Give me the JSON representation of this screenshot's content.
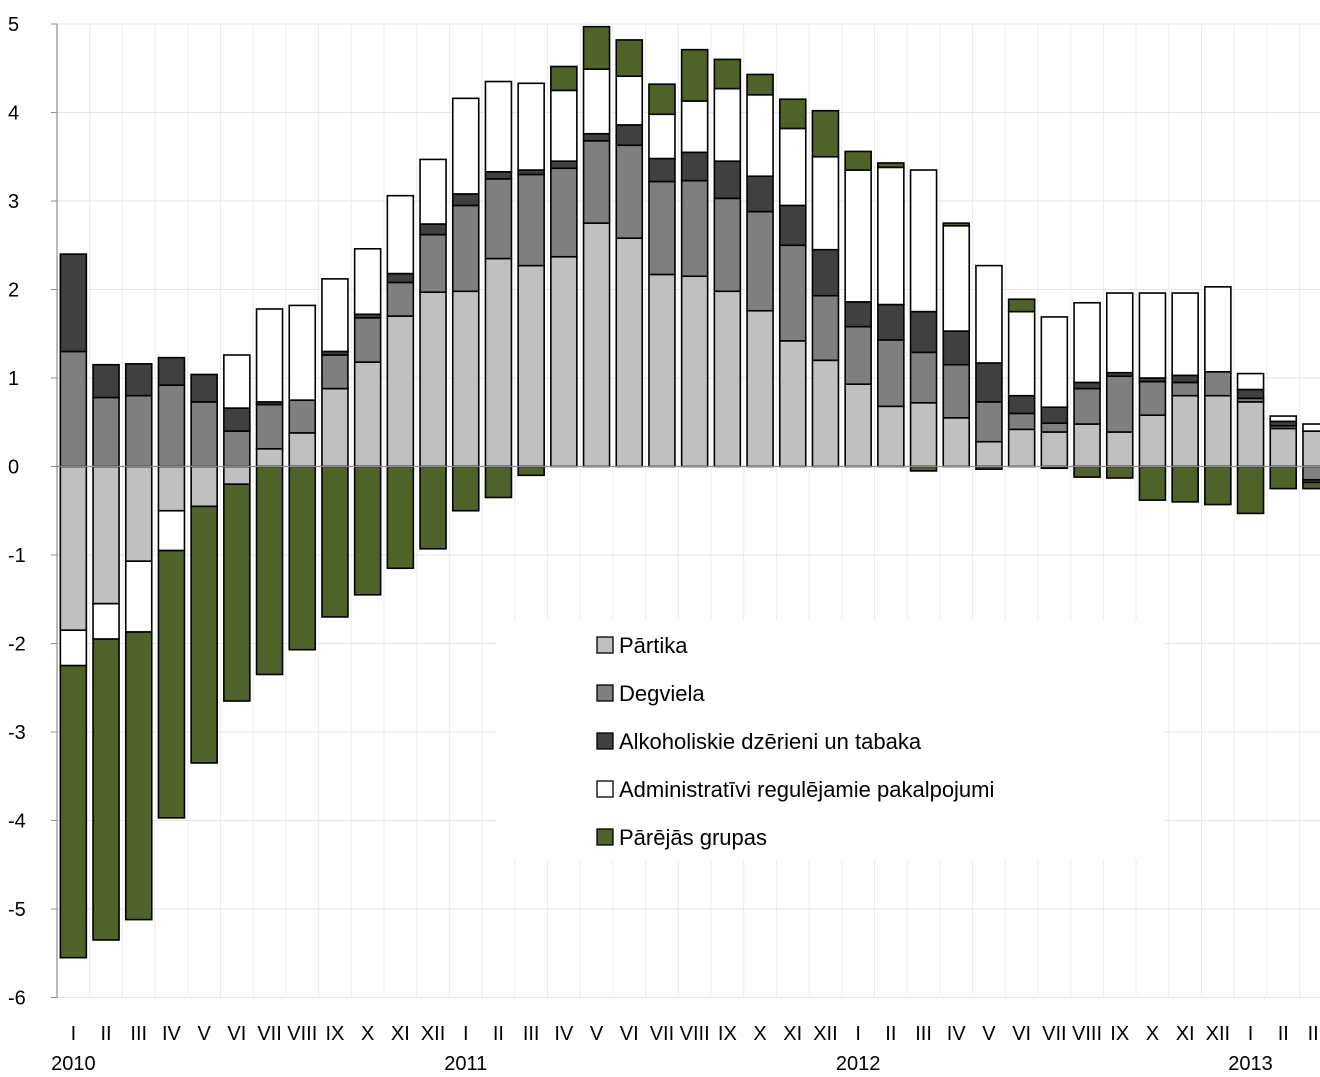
{
  "chart_data": {
    "type": "bar",
    "stacked": true,
    "ylim": [
      -6,
      5
    ],
    "yticks": [
      5,
      4,
      3,
      2,
      1,
      0,
      -1,
      -2,
      -3,
      -4,
      -5,
      -6
    ],
    "ytick_labels": [
      "5",
      "4",
      "3",
      "2",
      "1",
      "0",
      "-1",
      "-2",
      "-3",
      "-4",
      "-5",
      "-6"
    ],
    "grid": true,
    "legend_position": "center",
    "categories": [
      "I",
      "II",
      "III",
      "IV",
      "V",
      "VI",
      "VII",
      "VIII",
      "IX",
      "X",
      "XI",
      "XII",
      "I",
      "II",
      "III",
      "IV",
      "V",
      "VI",
      "VII",
      "VIII",
      "IX",
      "X",
      "XI",
      "XII",
      "I",
      "II",
      "III",
      "IV",
      "V",
      "VI",
      "VII",
      "VIII",
      "IX",
      "X",
      "XI",
      "XII",
      "I",
      "II",
      "III"
    ],
    "years": [
      {
        "label": "2010",
        "index": 0
      },
      {
        "label": "2011",
        "index": 12
      },
      {
        "label": "2012",
        "index": 24
      },
      {
        "label": "2013",
        "index": 36
      }
    ],
    "series": [
      {
        "name": "Pārtika",
        "color": "#c0c0c0",
        "values": [
          -1.85,
          -1.55,
          -1.07,
          -0.5,
          -0.45,
          -0.2,
          0.2,
          0.38,
          0.88,
          1.18,
          1.7,
          1.97,
          1.98,
          2.35,
          2.27,
          2.37,
          2.75,
          2.58,
          2.17,
          2.15,
          1.98,
          1.76,
          1.42,
          1.2,
          0.93,
          0.68,
          0.72,
          0.55,
          0.28,
          0.42,
          0.39,
          0.48,
          0.39,
          0.58,
          0.8,
          0.8,
          0.73,
          0.43,
          0.4
        ]
      },
      {
        "name": "Degviela",
        "color": "#7f7f7f",
        "values": [
          1.3,
          0.78,
          0.8,
          0.92,
          0.73,
          0.4,
          0.5,
          0.37,
          0.38,
          0.5,
          0.38,
          0.65,
          0.97,
          0.9,
          1.03,
          1.0,
          0.93,
          1.05,
          1.05,
          1.08,
          1.05,
          1.12,
          1.08,
          0.73,
          0.65,
          0.75,
          0.57,
          0.6,
          0.45,
          0.18,
          0.1,
          0.4,
          0.63,
          0.38,
          0.15,
          0.27,
          0.04,
          0.03,
          -0.15
        ]
      },
      {
        "name": "Alkoholiskie dzērieni un tabaka",
        "color": "#404040",
        "values": [
          1.1,
          0.37,
          0.36,
          0.31,
          0.31,
          0.26,
          0.03,
          0.0,
          0.04,
          0.04,
          0.1,
          0.12,
          0.13,
          0.08,
          0.05,
          0.08,
          0.08,
          0.23,
          0.26,
          0.32,
          0.42,
          0.4,
          0.45,
          0.52,
          0.28,
          0.4,
          0.46,
          0.38,
          0.44,
          0.2,
          0.18,
          0.07,
          0.04,
          0.04,
          0.08,
          0.0,
          0.1,
          0.05,
          -0.03
        ]
      },
      {
        "name": "Administratīvi regulējamie pakalpojumi",
        "color": "#ffffff",
        "values": [
          -0.4,
          -0.4,
          -0.8,
          -0.45,
          0.0,
          0.6,
          1.05,
          1.07,
          0.82,
          0.74,
          0.88,
          0.73,
          1.08,
          1.02,
          0.98,
          0.8,
          0.73,
          0.55,
          0.5,
          0.58,
          0.82,
          0.92,
          0.87,
          1.05,
          1.49,
          1.55,
          1.6,
          1.19,
          1.1,
          0.95,
          1.02,
          0.9,
          0.9,
          0.96,
          0.93,
          0.96,
          0.18,
          0.06,
          0.08
        ]
      },
      {
        "name": "Pārējās grupas",
        "color": "#4f6228",
        "values": [
          -3.3,
          -3.4,
          -3.25,
          -3.02,
          -2.9,
          -2.45,
          -2.35,
          -2.07,
          -1.7,
          -1.45,
          -1.15,
          -0.93,
          -0.5,
          -0.35,
          -0.1,
          0.27,
          0.48,
          0.41,
          0.34,
          0.58,
          0.33,
          0.23,
          0.33,
          0.52,
          0.21,
          0.05,
          -0.05,
          0.03,
          -0.03,
          0.14,
          -0.02,
          -0.12,
          -0.13,
          -0.38,
          -0.4,
          -0.43,
          -0.53,
          -0.25,
          -0.07
        ]
      }
    ]
  },
  "legend": {
    "items": [
      {
        "label": "Pārtika",
        "color": "#c0c0c0"
      },
      {
        "label": "Degviela",
        "color": "#7f7f7f"
      },
      {
        "label": "Alkoholiskie dzērieni un tabaka",
        "color": "#404040"
      },
      {
        "label": "Administratīvi regulējamie pakalpojumi",
        "color": "#ffffff"
      },
      {
        "label": "Pārējās grupas",
        "color": "#4f6228"
      }
    ]
  }
}
